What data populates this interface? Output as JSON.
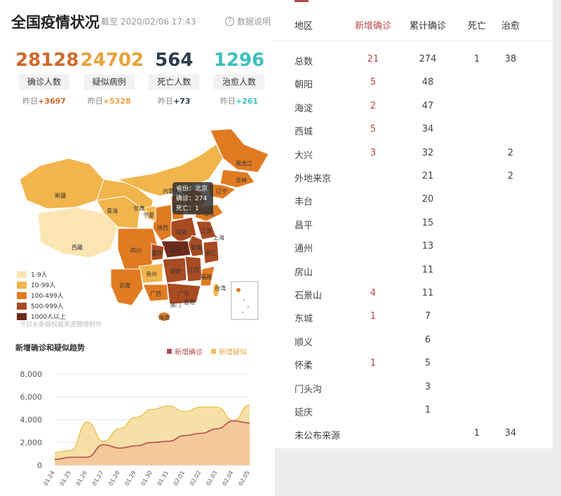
{
  "header": {
    "title": "全国疫情状况",
    "subtitle": "截至 2020/02/06 17:43",
    "data_note": "数据说明"
  },
  "stats": [
    {
      "value": "28128",
      "label": "确诊人数",
      "yesterday_prefix": "昨日",
      "yesterday_delta": "+3697",
      "color": "#d0692a"
    },
    {
      "value": "24702",
      "label": "疑似病例",
      "yesterday_prefix": "昨日",
      "yesterday_delta": "+5328",
      "color": "#e8a33a"
    },
    {
      "value": "564",
      "label": "死亡人数",
      "yesterday_prefix": "昨日",
      "yesterday_delta": "+73",
      "color": "#2c3e50"
    },
    {
      "value": "1296",
      "label": "治愈人数",
      "yesterday_prefix": "昨日",
      "yesterday_delta": "+261",
      "color": "#3dbfbf"
    }
  ],
  "map": {
    "legend": [
      {
        "label": "1-9人",
        "color": "#fbe6b3"
      },
      {
        "label": "10-99人",
        "color": "#f2b54c"
      },
      {
        "label": "100-499人",
        "color": "#e07b22"
      },
      {
        "label": "500-999人",
        "color": "#a84a22"
      },
      {
        "label": "1000人以上",
        "color": "#6e2a1a"
      }
    ],
    "credit": "今日头条据权威来源整理制作",
    "tooltip": {
      "province": "省份：北京",
      "confirmed": "确诊：274",
      "deaths": "死亡：1"
    },
    "labels": [
      "新疆",
      "西藏",
      "青海",
      "甘肃",
      "宁夏",
      "内蒙古",
      "黑龙江",
      "吉林",
      "辽宁",
      "山东",
      "江苏",
      "陕西",
      "河南",
      "四川",
      "湖北",
      "安徽",
      "上海",
      "浙江",
      "重庆",
      "湖南",
      "江西",
      "福建",
      "云南",
      "贵州",
      "广西",
      "广东",
      "台湾",
      "海南",
      "香港",
      "澳门",
      "山西"
    ]
  },
  "trend": {
    "title": "新增确诊和疑似趋势",
    "legend": [
      {
        "name": "新增确诊",
        "color": "#b34a4a"
      },
      {
        "name": "新增疑似",
        "color": "#eec35a"
      }
    ]
  },
  "chart_data": {
    "type": "area",
    "x": [
      "01.24",
      "01.25",
      "01.26",
      "01.27",
      "01.28",
      "01.29",
      "01.30",
      "01.31",
      "02.01",
      "02.02",
      "02.03",
      "02.04",
      "02.05"
    ],
    "ylim": [
      0,
      8000
    ],
    "yticks": [
      "8,000",
      "6,000",
      "4,000",
      "2,000",
      "0"
    ],
    "series": [
      {
        "name": "新增疑似",
        "values": [
          1100,
          1300,
          3800,
          2100,
          3200,
          4200,
          4900,
          5200,
          4700,
          5100,
          5100,
          3900,
          5300
        ]
      },
      {
        "name": "新增确诊",
        "values": [
          500,
          700,
          700,
          1800,
          1500,
          1700,
          2000,
          2100,
          2600,
          2800,
          3200,
          3900,
          3700
        ]
      }
    ]
  },
  "table": {
    "headers": {
      "region": "地区",
      "new": "新增确诊",
      "cum": "累计确诊",
      "death": "死亡",
      "cured": "治愈"
    },
    "rows": [
      {
        "region": "总数",
        "new": "21",
        "cum": "274",
        "death": "1",
        "cured": "38"
      },
      {
        "region": "朝阳",
        "new": "5",
        "cum": "48",
        "death": "",
        "cured": ""
      },
      {
        "region": "海淀",
        "new": "2",
        "cum": "47",
        "death": "",
        "cured": ""
      },
      {
        "region": "西城",
        "new": "5",
        "cum": "34",
        "death": "",
        "cured": ""
      },
      {
        "region": "大兴",
        "new": "3",
        "cum": "32",
        "death": "",
        "cured": "2"
      },
      {
        "region": "外地来京",
        "new": "",
        "cum": "21",
        "death": "",
        "cured": "2"
      },
      {
        "region": "丰台",
        "new": "",
        "cum": "20",
        "death": "",
        "cured": ""
      },
      {
        "region": "昌平",
        "new": "",
        "cum": "15",
        "death": "",
        "cured": ""
      },
      {
        "region": "通州",
        "new": "",
        "cum": "13",
        "death": "",
        "cured": ""
      },
      {
        "region": "房山",
        "new": "",
        "cum": "11",
        "death": "",
        "cured": ""
      },
      {
        "region": "石景山",
        "new": "4",
        "cum": "11",
        "death": "",
        "cured": ""
      },
      {
        "region": "东城",
        "new": "1",
        "cum": "7",
        "death": "",
        "cured": ""
      },
      {
        "region": "顺义",
        "new": "",
        "cum": "6",
        "death": "",
        "cured": ""
      },
      {
        "region": "怀柔",
        "new": "1",
        "cum": "5",
        "death": "",
        "cured": ""
      },
      {
        "region": "门头沟",
        "new": "",
        "cum": "3",
        "death": "",
        "cured": ""
      },
      {
        "region": "延庆",
        "new": "",
        "cum": "1",
        "death": "",
        "cured": ""
      },
      {
        "region": "未公布来源",
        "new": "",
        "cum": "",
        "death": "1",
        "cured": "34"
      }
    ]
  }
}
